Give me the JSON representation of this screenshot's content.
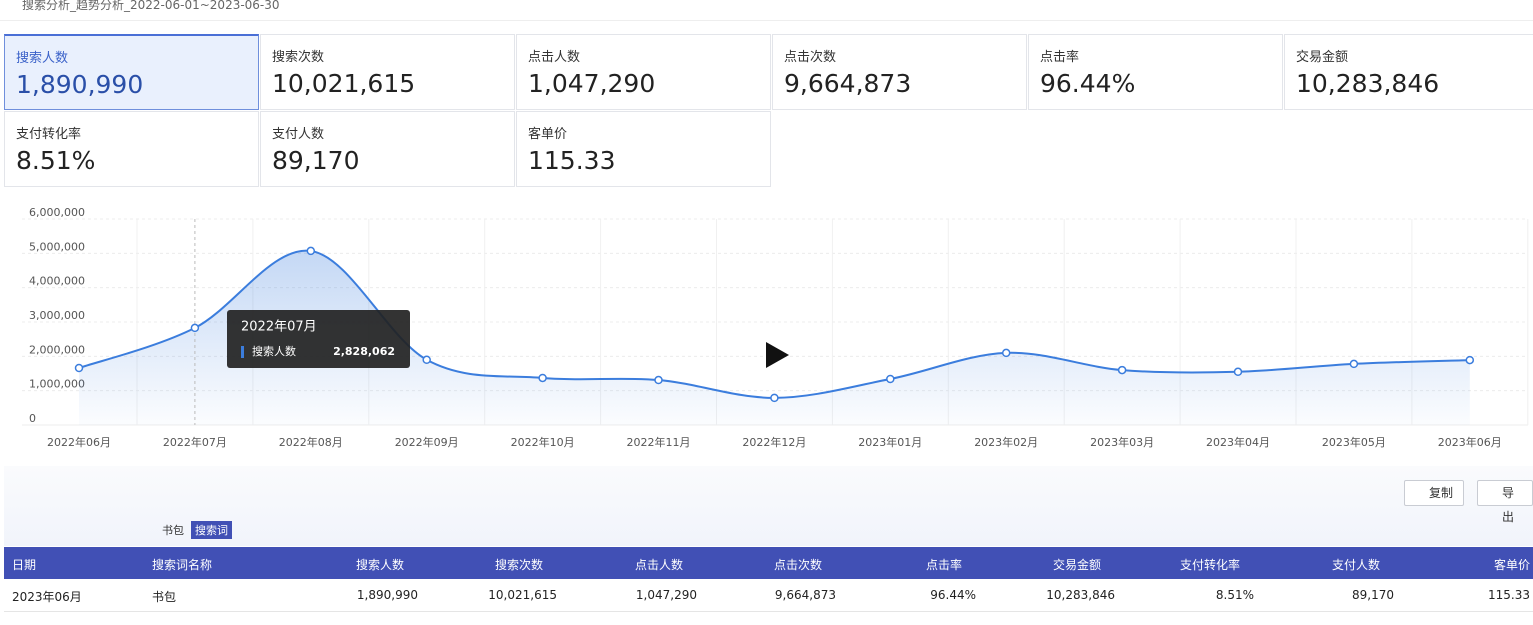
{
  "header": {
    "title": "搜索分析_趋势分析_2022-06-01~2023-06-30"
  },
  "metrics": [
    {
      "label": "搜索人数",
      "value": "1,890,990"
    },
    {
      "label": "搜索次数",
      "value": "10,021,615"
    },
    {
      "label": "点击人数",
      "value": "1,047,290"
    },
    {
      "label": "点击次数",
      "value": "9,664,873"
    },
    {
      "label": "点击率",
      "value": "96.44%"
    },
    {
      "label": "交易金额",
      "value": "10,283,846"
    },
    {
      "label": "支付转化率",
      "value": "8.51%"
    },
    {
      "label": "支付人数",
      "value": "89,170"
    },
    {
      "label": "客单价",
      "value": "115.33"
    }
  ],
  "chart_data": {
    "type": "line",
    "series_name": "搜索人数",
    "color": "#3b7ddd",
    "categories": [
      "2022年06月",
      "2022年07月",
      "2022年08月",
      "2022年09月",
      "2022年10月",
      "2022年11月",
      "2022年12月",
      "2023年01月",
      "2023年02月",
      "2023年03月",
      "2023年04月",
      "2023年05月",
      "2023年06月"
    ],
    "values": [
      1660000,
      2828062,
      5070000,
      1900000,
      1370000,
      1310000,
      790000,
      1340000,
      2100000,
      1600000,
      1550000,
      1780000,
      1890990
    ],
    "ylim": [
      0,
      6000000
    ],
    "yticks": [
      0,
      {
        "value": 1000000,
        "label": "1,000,000"
      },
      {
        "value": 2000000,
        "label": "2,000,000"
      },
      {
        "value": 3000000,
        "label": "3,000,000"
      },
      {
        "value": 4000000,
        "label": "4,000,000"
      },
      {
        "value": 5000000,
        "label": "5,000,000"
      },
      {
        "value": 6000000,
        "label": "6,000,000"
      }
    ],
    "grid": true,
    "tooltip": {
      "index": 1,
      "value_label": "2,828,062"
    }
  },
  "buttons": [
    "复制",
    "导出"
  ],
  "filters": [
    "书包",
    "搜索词"
  ],
  "table": {
    "columns": [
      "日期",
      "搜索词名称",
      "搜索人数",
      "搜索次数",
      "点击人数",
      "点击次数",
      "点击率",
      "交易金额",
      "支付转化率",
      "支付人数",
      "客单价"
    ],
    "rows": [
      [
        "2023年06月",
        "书包",
        "1,890,990",
        "10,021,615",
        "1,047,290",
        "9,664,873",
        "96.44%",
        "10,283,846",
        "8.51%",
        "89,170",
        "115.33"
      ]
    ]
  }
}
